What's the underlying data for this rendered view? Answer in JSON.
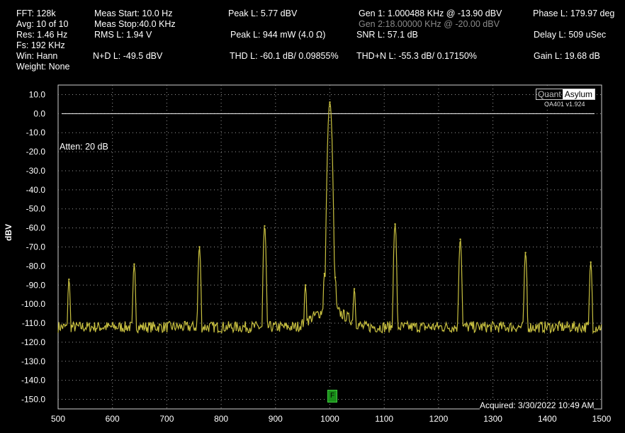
{
  "stats": {
    "fft": "FFT: 128k",
    "avg": "Avg: 10 of 10",
    "res": "Res: 1.46 Hz",
    "fs": "Fs: 192 KHz",
    "win": "Win: Hann",
    "weight": "Weight: None",
    "meas_start": "Meas Start: 10.0 Hz",
    "meas_stop": "Meas Stop:40.0 KHz",
    "rms": "RMS L: 1.94 V",
    "nd": "N+D L: -49.5 dBV",
    "peak_dbv": "Peak L: 5.77 dBV",
    "peak_mw": "Peak L: 944 mW (4.0 Ω)",
    "thd": "THD L: -60.1 dB/ 0.09855%",
    "gen1": "Gen 1: 1.000488 KHz @ -13.90  dBV",
    "gen2": "Gen 2:18.00000 KHz @ -20.00  dBV",
    "snr": "SNR L: 57.1 dB",
    "thdn": "THD+N L: -55.3 dB/ 0.17150%",
    "phase": "Phase L: 179.97 deg",
    "delay": "Delay L: 509 uSec",
    "gain": "Gain L: 19.68 dB"
  },
  "logo": {
    "quant": "Quant",
    "asylum": "Asylum",
    "version": "OA401 v1.924"
  },
  "atten": "Atten: 20 dB",
  "acquired": "Acquired: 3/30/2022  10:49 AM",
  "marker_label": "F",
  "colors": {
    "trace": "#c8c040",
    "grid": "#9a9a9a",
    "axis": "#cfcfcf",
    "bg": "#000000"
  },
  "chart_data": {
    "type": "line",
    "xlabel": "",
    "ylabel": "dBV",
    "xlim": [
      500,
      1500
    ],
    "ylim": [
      -155,
      15
    ],
    "x_ticks": [
      500,
      600,
      700,
      800,
      900,
      1000,
      1100,
      1200,
      1300,
      1400,
      1500
    ],
    "y_ticks": [
      10,
      0,
      -10,
      -20,
      -30,
      -40,
      -50,
      -60,
      -70,
      -80,
      -90,
      -100,
      -110,
      -120,
      -130,
      -140,
      -150
    ],
    "reference_line": 0,
    "grid": true,
    "noise_floor_dbv": -112,
    "series": [
      {
        "peaks": [
          {
            "x": 520,
            "y": -87
          },
          {
            "x": 640,
            "y": -79
          },
          {
            "x": 760,
            "y": -70
          },
          {
            "x": 880,
            "y": -59
          },
          {
            "x": 1000,
            "y": 6
          },
          {
            "x": 1120,
            "y": -58
          },
          {
            "x": 1240,
            "y": -66
          },
          {
            "x": 1360,
            "y": -73
          },
          {
            "x": 1480,
            "y": -78
          },
          {
            "x": 955,
            "y": -90
          },
          {
            "x": 1045,
            "y": -92
          },
          {
            "x": 990,
            "y": -84
          },
          {
            "x": 1010,
            "y": -86
          }
        ]
      }
    ]
  }
}
